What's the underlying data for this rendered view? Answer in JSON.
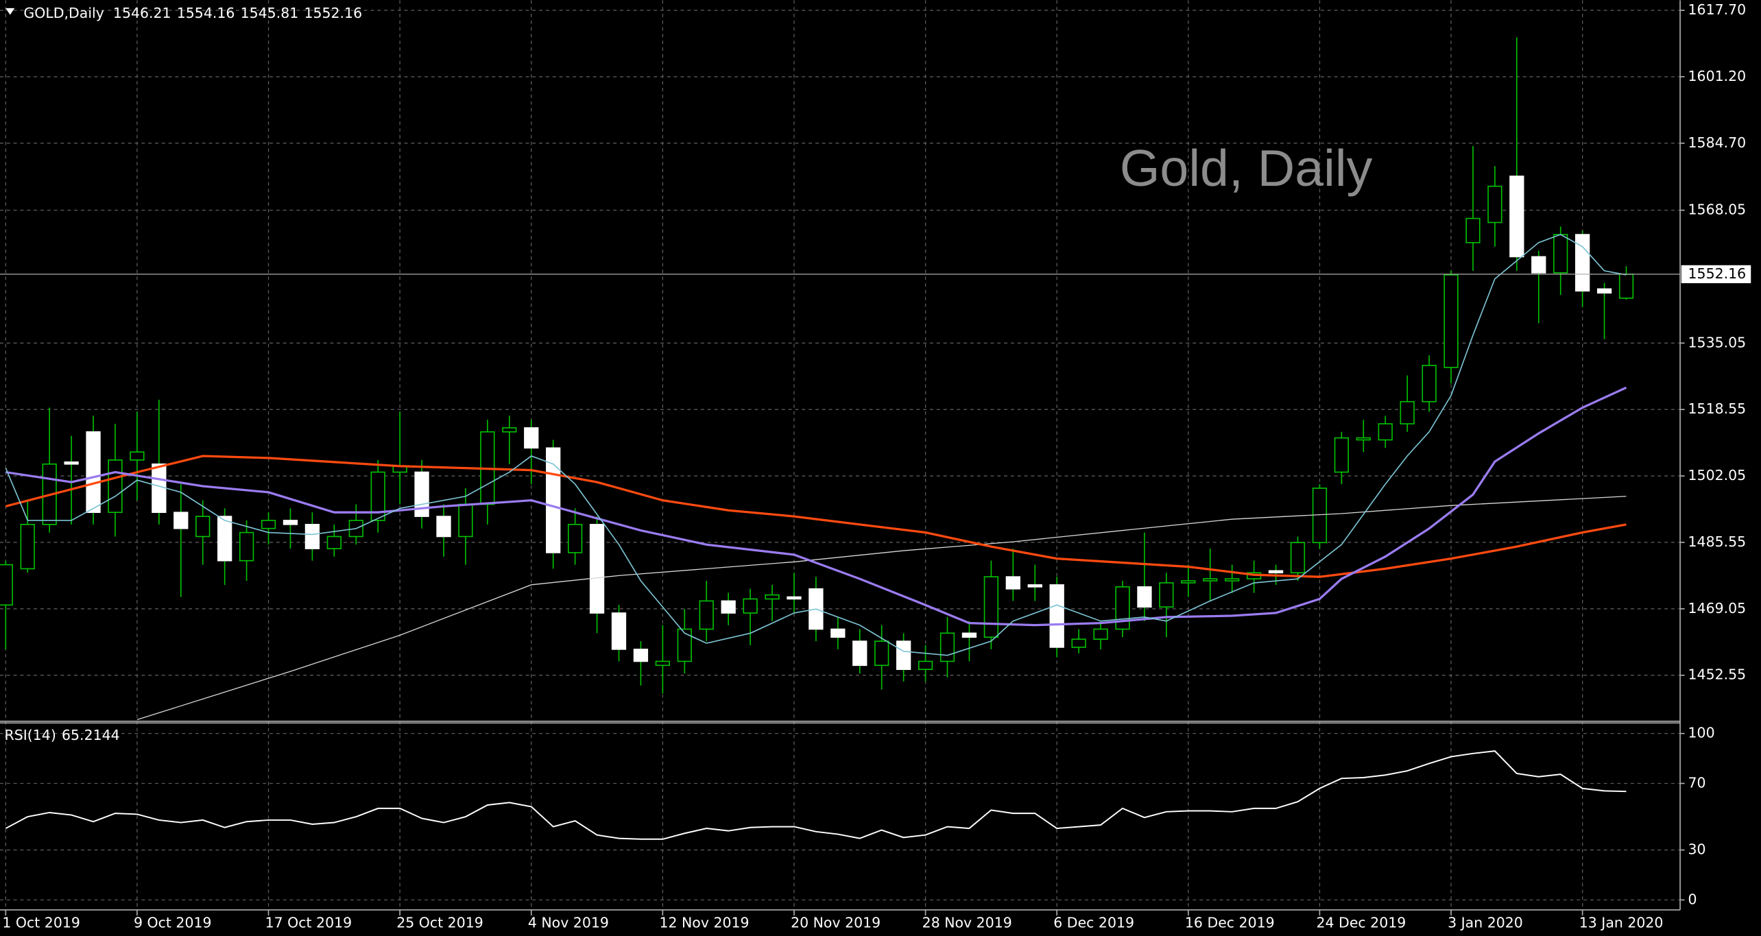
{
  "chart_data": [
    {
      "type": "candlestick",
      "title": "Gold, Daily",
      "symbol": "GOLD,Daily",
      "open": [
        1470,
        1479,
        1490,
        1505.5,
        1513,
        1493,
        1506,
        1505,
        1493,
        1487,
        1492,
        1481,
        1489,
        1491,
        1490,
        1484,
        1487,
        1491,
        1503,
        1503,
        1492,
        1487,
        1495,
        1513,
        1514,
        1509,
        1483,
        1490,
        1468,
        1459,
        1455,
        1456,
        1464,
        1471,
        1468,
        1471.5,
        1472,
        1474,
        1464,
        1461,
        1455,
        1461,
        1454,
        1456,
        1463,
        1462,
        1477,
        1475,
        1475,
        1459.5,
        1461.5,
        1464,
        1474.5,
        1469.5,
        1475.5,
        1476,
        1476,
        1476.5,
        1478.5,
        1478,
        1485.5,
        1503,
        1511,
        1511,
        1515,
        1520.5,
        1529,
        1560,
        1565,
        1576.5,
        1556.5,
        1552.5,
        1562,
        1548.5,
        1546.21
      ],
      "high": [
        1481,
        1496,
        1519,
        1512,
        1517,
        1515,
        1518,
        1521,
        1500,
        1496,
        1494,
        1491,
        1493,
        1494,
        1493,
        1490,
        1495,
        1506,
        1518,
        1506,
        1495,
        1499,
        1516,
        1517,
        1516,
        1511,
        1494,
        1492,
        1470,
        1461,
        1465,
        1469,
        1476,
        1473,
        1474,
        1475,
        1478,
        1477,
        1467,
        1464,
        1465,
        1463,
        1460,
        1467,
        1466,
        1481,
        1484,
        1480,
        1477,
        1464,
        1466,
        1476,
        1488,
        1478,
        1480,
        1484,
        1480,
        1481,
        1480,
        1487,
        1500,
        1513,
        1516,
        1517,
        1527,
        1532,
        1553,
        1584,
        1579,
        1611,
        1558,
        1564,
        1563,
        1550,
        1554.16
      ],
      "low": [
        1459,
        1478,
        1488,
        1490,
        1490,
        1487,
        1496,
        1490,
        1472,
        1480,
        1475,
        1476,
        1485,
        1484,
        1481,
        1482,
        1485,
        1488,
        1495,
        1489,
        1482,
        1480,
        1490,
        1505,
        1500,
        1479,
        1480,
        1463,
        1456,
        1450,
        1448,
        1453,
        1461,
        1465,
        1460,
        1466,
        1468,
        1461,
        1459,
        1453,
        1449,
        1451,
        1451,
        1452,
        1456,
        1459,
        1471,
        1471,
        1457,
        1458,
        1459,
        1462,
        1466,
        1462,
        1472,
        1471,
        1473,
        1473,
        1475,
        1476,
        1484,
        1500,
        1508,
        1509,
        1513,
        1518,
        1525,
        1553,
        1559,
        1553,
        1540,
        1547,
        1544,
        1536,
        1545.81
      ],
      "close": [
        1480,
        1490,
        1505,
        1505,
        1493,
        1506,
        1508,
        1493,
        1489,
        1492,
        1481,
        1488,
        1491,
        1490,
        1484,
        1487,
        1491,
        1503,
        1504.5,
        1492,
        1487,
        1495,
        1513,
        1514,
        1509,
        1483,
        1490,
        1468,
        1459,
        1456,
        1456,
        1464,
        1471,
        1468,
        1471.5,
        1472.5,
        1471.5,
        1464,
        1462,
        1455,
        1461,
        1454,
        1456,
        1463,
        1462,
        1477,
        1474,
        1474.5,
        1459.5,
        1461.5,
        1464,
        1474.5,
        1469.5,
        1475.5,
        1476,
        1476.5,
        1476.5,
        1478,
        1478,
        1485.5,
        1499,
        1511.5,
        1511.5,
        1515,
        1520.5,
        1529.5,
        1552,
        1566,
        1574,
        1556.5,
        1552.5,
        1562,
        1548,
        1547.5,
        1552.16
      ],
      "up_color": "#000000",
      "down_color": "#ffffff",
      "wick_color": "#00c000",
      "series": [
        {
          "color": "#d8d8d8",
          "line_width": 0.8,
          "x": [
            6,
            13,
            18,
            24,
            28,
            36,
            41,
            46,
            51,
            56,
            61,
            66,
            74
          ],
          "values": [
            1441.5,
            1453.5,
            1462.5,
            1475,
            1477.3,
            1480.7,
            1483.5,
            1485.7,
            1488.5,
            1491.3,
            1492.7,
            1494.7,
            1497
          ]
        },
        {
          "color": "#ff4a10",
          "line_width": 2,
          "x": [
            0,
            6,
            9,
            12,
            15,
            18,
            21,
            24,
            27,
            30,
            33,
            36,
            39,
            42,
            45,
            48,
            51,
            54,
            57,
            60,
            63,
            66,
            69,
            72,
            74
          ],
          "values": [
            1494.5,
            1503,
            1507,
            1506.5,
            1505.5,
            1504.5,
            1504,
            1503.5,
            1500.5,
            1496,
            1493.5,
            1492,
            1490,
            1488,
            1484.5,
            1481.5,
            1480.5,
            1479.5,
            1477.5,
            1477,
            1479,
            1481.5,
            1484.5,
            1488,
            1490
          ]
        },
        {
          "color": "#9a7cf0",
          "line_width": 2,
          "x": [
            0,
            3,
            5,
            9,
            12,
            15,
            17,
            20,
            24,
            26,
            29,
            32,
            36,
            39,
            42,
            44,
            47,
            50,
            53,
            56,
            58,
            60,
            61,
            63,
            65,
            67,
            68,
            70,
            72,
            74
          ],
          "values": [
            1503,
            1500.5,
            1503,
            1499.5,
            1498,
            1493,
            1493,
            1494.5,
            1496,
            1493,
            1488.5,
            1485,
            1482.5,
            1476.5,
            1470,
            1465.5,
            1465,
            1465.5,
            1467,
            1467.3,
            1468,
            1471.5,
            1476.5,
            1482,
            1489,
            1497.4,
            1505.6,
            1512.6,
            1519,
            1524
          ]
        },
        {
          "color": "#7cc4d4",
          "line_width": 1,
          "x": [
            0,
            1,
            3,
            5,
            6,
            8,
            10,
            12,
            14,
            16,
            18,
            20,
            21,
            23,
            24,
            25,
            26,
            28,
            29,
            31,
            32,
            34,
            36,
            37,
            39,
            41,
            43,
            45,
            46,
            48,
            50,
            52,
            53,
            55,
            57,
            59,
            61,
            63,
            64,
            65,
            66,
            67,
            68,
            70,
            71,
            72,
            73,
            74
          ],
          "values": [
            1504,
            1491,
            1491,
            1497,
            1501,
            1498,
            1491,
            1488,
            1487.5,
            1489,
            1494,
            1496,
            1497,
            1503,
            1507,
            1505,
            1500,
            1485,
            1476,
            1463,
            1460.5,
            1463,
            1468,
            1469,
            1465,
            1458.5,
            1457.5,
            1461,
            1466,
            1470,
            1466,
            1467,
            1466,
            1471,
            1475.5,
            1476.5,
            1485,
            1500,
            1507,
            1513,
            1522,
            1537,
            1551,
            1560,
            1562,
            1559,
            1553,
            1552
          ]
        }
      ],
      "xlim": [
        -0.26,
        76.46
      ],
      "ylim": [
        1441.4,
        1620.2
      ],
      "yticks": [
        {
          "value": 1617.7,
          "label": "1617.70"
        },
        {
          "value": 1601.2,
          "label": "1601.20"
        },
        {
          "value": 1584.7,
          "label": "1584.70"
        },
        1568.05,
        1535.05,
        1518.55,
        1502.05,
        1485.55,
        1469.05,
        1452.55
      ],
      "xticks": [
        {
          "value": 0,
          "label": "1 Oct 2019"
        },
        {
          "value": 6,
          "label": "9 Oct 2019"
        },
        {
          "value": 12,
          "label": "17 Oct 2019"
        },
        {
          "value": 18,
          "label": "25 Oct 2019"
        },
        {
          "value": 24,
          "label": "4 Nov 2019"
        },
        {
          "value": 30,
          "label": "12 Nov 2019"
        },
        {
          "value": 36,
          "label": "20 Nov 2019"
        },
        {
          "value": 42,
          "label": "28 Nov 2019"
        },
        {
          "value": 48,
          "label": "6 Dec 2019"
        },
        {
          "value": 54,
          "label": "16 Dec 2019"
        },
        {
          "value": 60,
          "label": "24 Dec 2019"
        },
        {
          "value": 66,
          "label": "3 Jan 2020"
        },
        {
          "value": 72,
          "label": "13 Jan 2020"
        }
      ],
      "grid": true
    },
    {
      "type": "line",
      "name": "RSI(14)",
      "color": "#ffffff",
      "values": [
        43,
        50,
        52.5,
        51,
        47,
        52,
        51.5,
        48,
        46.5,
        48,
        43.5,
        47,
        48,
        48,
        45.5,
        46.5,
        50,
        55,
        55,
        49,
        46.5,
        50,
        57,
        58.5,
        56,
        44,
        47.5,
        39,
        37,
        36.5,
        36.5,
        40,
        43,
        41.5,
        43.5,
        44,
        44,
        41,
        39.5,
        37,
        42,
        37.5,
        39,
        44,
        43,
        54,
        52,
        52,
        43,
        44,
        45,
        55,
        49.5,
        53,
        53.5,
        53.5,
        53,
        55,
        55,
        59,
        67,
        73,
        73.5,
        75,
        77.5,
        82,
        86,
        88,
        89.5,
        76,
        74,
        75.5,
        67,
        65.5,
        65.2144
      ],
      "ylim": [
        -6,
        106
      ],
      "yticks": [
        100,
        70,
        30,
        0
      ],
      "grid": true
    }
  ]
}
